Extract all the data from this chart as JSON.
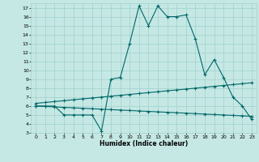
{
  "xlabel": "Humidex (Indice chaleur)",
  "bg_color": "#c5e8e5",
  "line_color": "#006868",
  "grid_color": "#a0d0cc",
  "xlim_min": -0.5,
  "xlim_max": 23.5,
  "ylim_min": 3,
  "ylim_max": 17.5,
  "yticks": [
    3,
    4,
    5,
    6,
    7,
    8,
    9,
    10,
    11,
    12,
    13,
    14,
    15,
    16,
    17
  ],
  "xticks": [
    0,
    1,
    2,
    3,
    4,
    5,
    6,
    7,
    8,
    9,
    10,
    11,
    12,
    13,
    14,
    15,
    16,
    17,
    18,
    19,
    20,
    21,
    22,
    23
  ],
  "line1_x": [
    0,
    1,
    2,
    3,
    4,
    5,
    6,
    7,
    8,
    9,
    10,
    11,
    12,
    13,
    14,
    15,
    16,
    17,
    18,
    19,
    20,
    21,
    22,
    23
  ],
  "line1_y": [
    6.0,
    6.0,
    6.0,
    5.0,
    5.0,
    5.0,
    5.0,
    3.2,
    9.0,
    9.2,
    13.0,
    17.2,
    15.0,
    17.2,
    16.0,
    16.0,
    16.2,
    13.5,
    9.5,
    11.2,
    9.2,
    7.0,
    6.0,
    4.5
  ],
  "line2_x": [
    0,
    1,
    2,
    3,
    4,
    5,
    6,
    7,
    8,
    9,
    10,
    11,
    12,
    13,
    14,
    15,
    16,
    17,
    18,
    19,
    20,
    21,
    22,
    23
  ],
  "line2_y": [
    6.3,
    6.4,
    6.5,
    6.6,
    6.7,
    6.8,
    6.9,
    7.0,
    7.1,
    7.2,
    7.3,
    7.4,
    7.5,
    7.6,
    7.7,
    7.8,
    7.9,
    8.0,
    8.1,
    8.2,
    8.3,
    8.4,
    8.5,
    8.6
  ],
  "line3_x": [
    0,
    1,
    2,
    3,
    4,
    5,
    6,
    7,
    8,
    9,
    10,
    11,
    12,
    13,
    14,
    15,
    16,
    17,
    18,
    19,
    20,
    21,
    22,
    23
  ],
  "line3_y": [
    6.0,
    5.95,
    5.9,
    5.85,
    5.8,
    5.75,
    5.7,
    5.65,
    5.6,
    5.55,
    5.5,
    5.45,
    5.4,
    5.35,
    5.3,
    5.25,
    5.2,
    5.15,
    5.1,
    5.05,
    5.0,
    4.95,
    4.9,
    4.85
  ]
}
